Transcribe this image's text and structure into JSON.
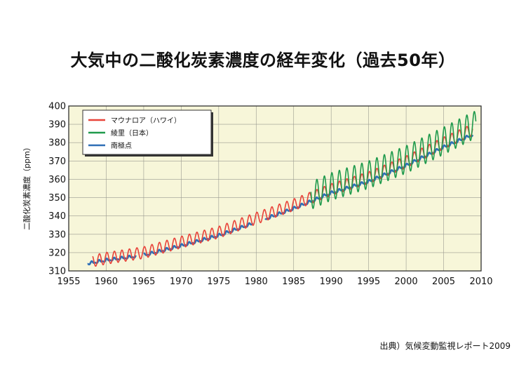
{
  "page": {
    "title": "大気中の二酸化炭素濃度の経年変化（過去50年）",
    "source": "出典）気候変動監視レポート2009"
  },
  "chart_data": {
    "type": "line",
    "title": "大気中の二酸化炭素濃度の経年変化（過去50年）",
    "xlabel": "",
    "ylabel": "二酸化炭素濃度（ppm）",
    "xlim": [
      1955,
      2010
    ],
    "ylim": [
      310,
      400
    ],
    "xticks": [
      1955,
      1960,
      1965,
      1970,
      1975,
      1980,
      1985,
      1990,
      1995,
      2000,
      2005,
      2010
    ],
    "yticks": [
      310,
      320,
      330,
      340,
      350,
      360,
      370,
      380,
      390,
      400
    ],
    "legend_position": "top-left",
    "background": "#f7f6d9",
    "series": [
      {
        "name": "マウナロア（ハワイ）",
        "color": "#e8433a",
        "start": 1958.2,
        "end": 2008.9,
        "seasonal_amplitude": 3.2,
        "trend": [
          [
            1958,
            315.3
          ],
          [
            1960,
            316.9
          ],
          [
            1965,
            320.0
          ],
          [
            1970,
            325.7
          ],
          [
            1975,
            331.1
          ],
          [
            1980,
            338.7
          ],
          [
            1985,
            346.1
          ],
          [
            1990,
            354.4
          ],
          [
            1995,
            360.9
          ],
          [
            2000,
            369.5
          ],
          [
            2005,
            379.8
          ],
          [
            2009,
            387.4
          ]
        ]
      },
      {
        "name": "綾里（日本）",
        "color": "#1f9a4c",
        "start": 1987.3,
        "end": 2009.3,
        "seasonal_amplitude": 7.5,
        "trend": [
          [
            1987,
            350.5
          ],
          [
            1990,
            356.0
          ],
          [
            1995,
            362.5
          ],
          [
            2000,
            370.8
          ],
          [
            2005,
            381.0
          ],
          [
            2009,
            389.5
          ]
        ]
      },
      {
        "name": "南極点",
        "color": "#2f6fb6",
        "start": 1957.5,
        "end": 2008.9,
        "seasonal_amplitude": 0.6,
        "gaps": [
          [
            1964.0,
            1965.0
          ],
          [
            1979.6,
            1981.2
          ]
        ],
        "trend": [
          [
            1957.5,
            314.0
          ],
          [
            1960,
            315.8
          ],
          [
            1965,
            318.5
          ],
          [
            1970,
            323.7
          ],
          [
            1975,
            329.3
          ],
          [
            1980,
            336.5
          ],
          [
            1985,
            344.0
          ],
          [
            1990,
            352.5
          ],
          [
            1995,
            358.7
          ],
          [
            2000,
            367.5
          ],
          [
            2005,
            377.5
          ],
          [
            2009,
            384.5
          ]
        ]
      }
    ]
  }
}
